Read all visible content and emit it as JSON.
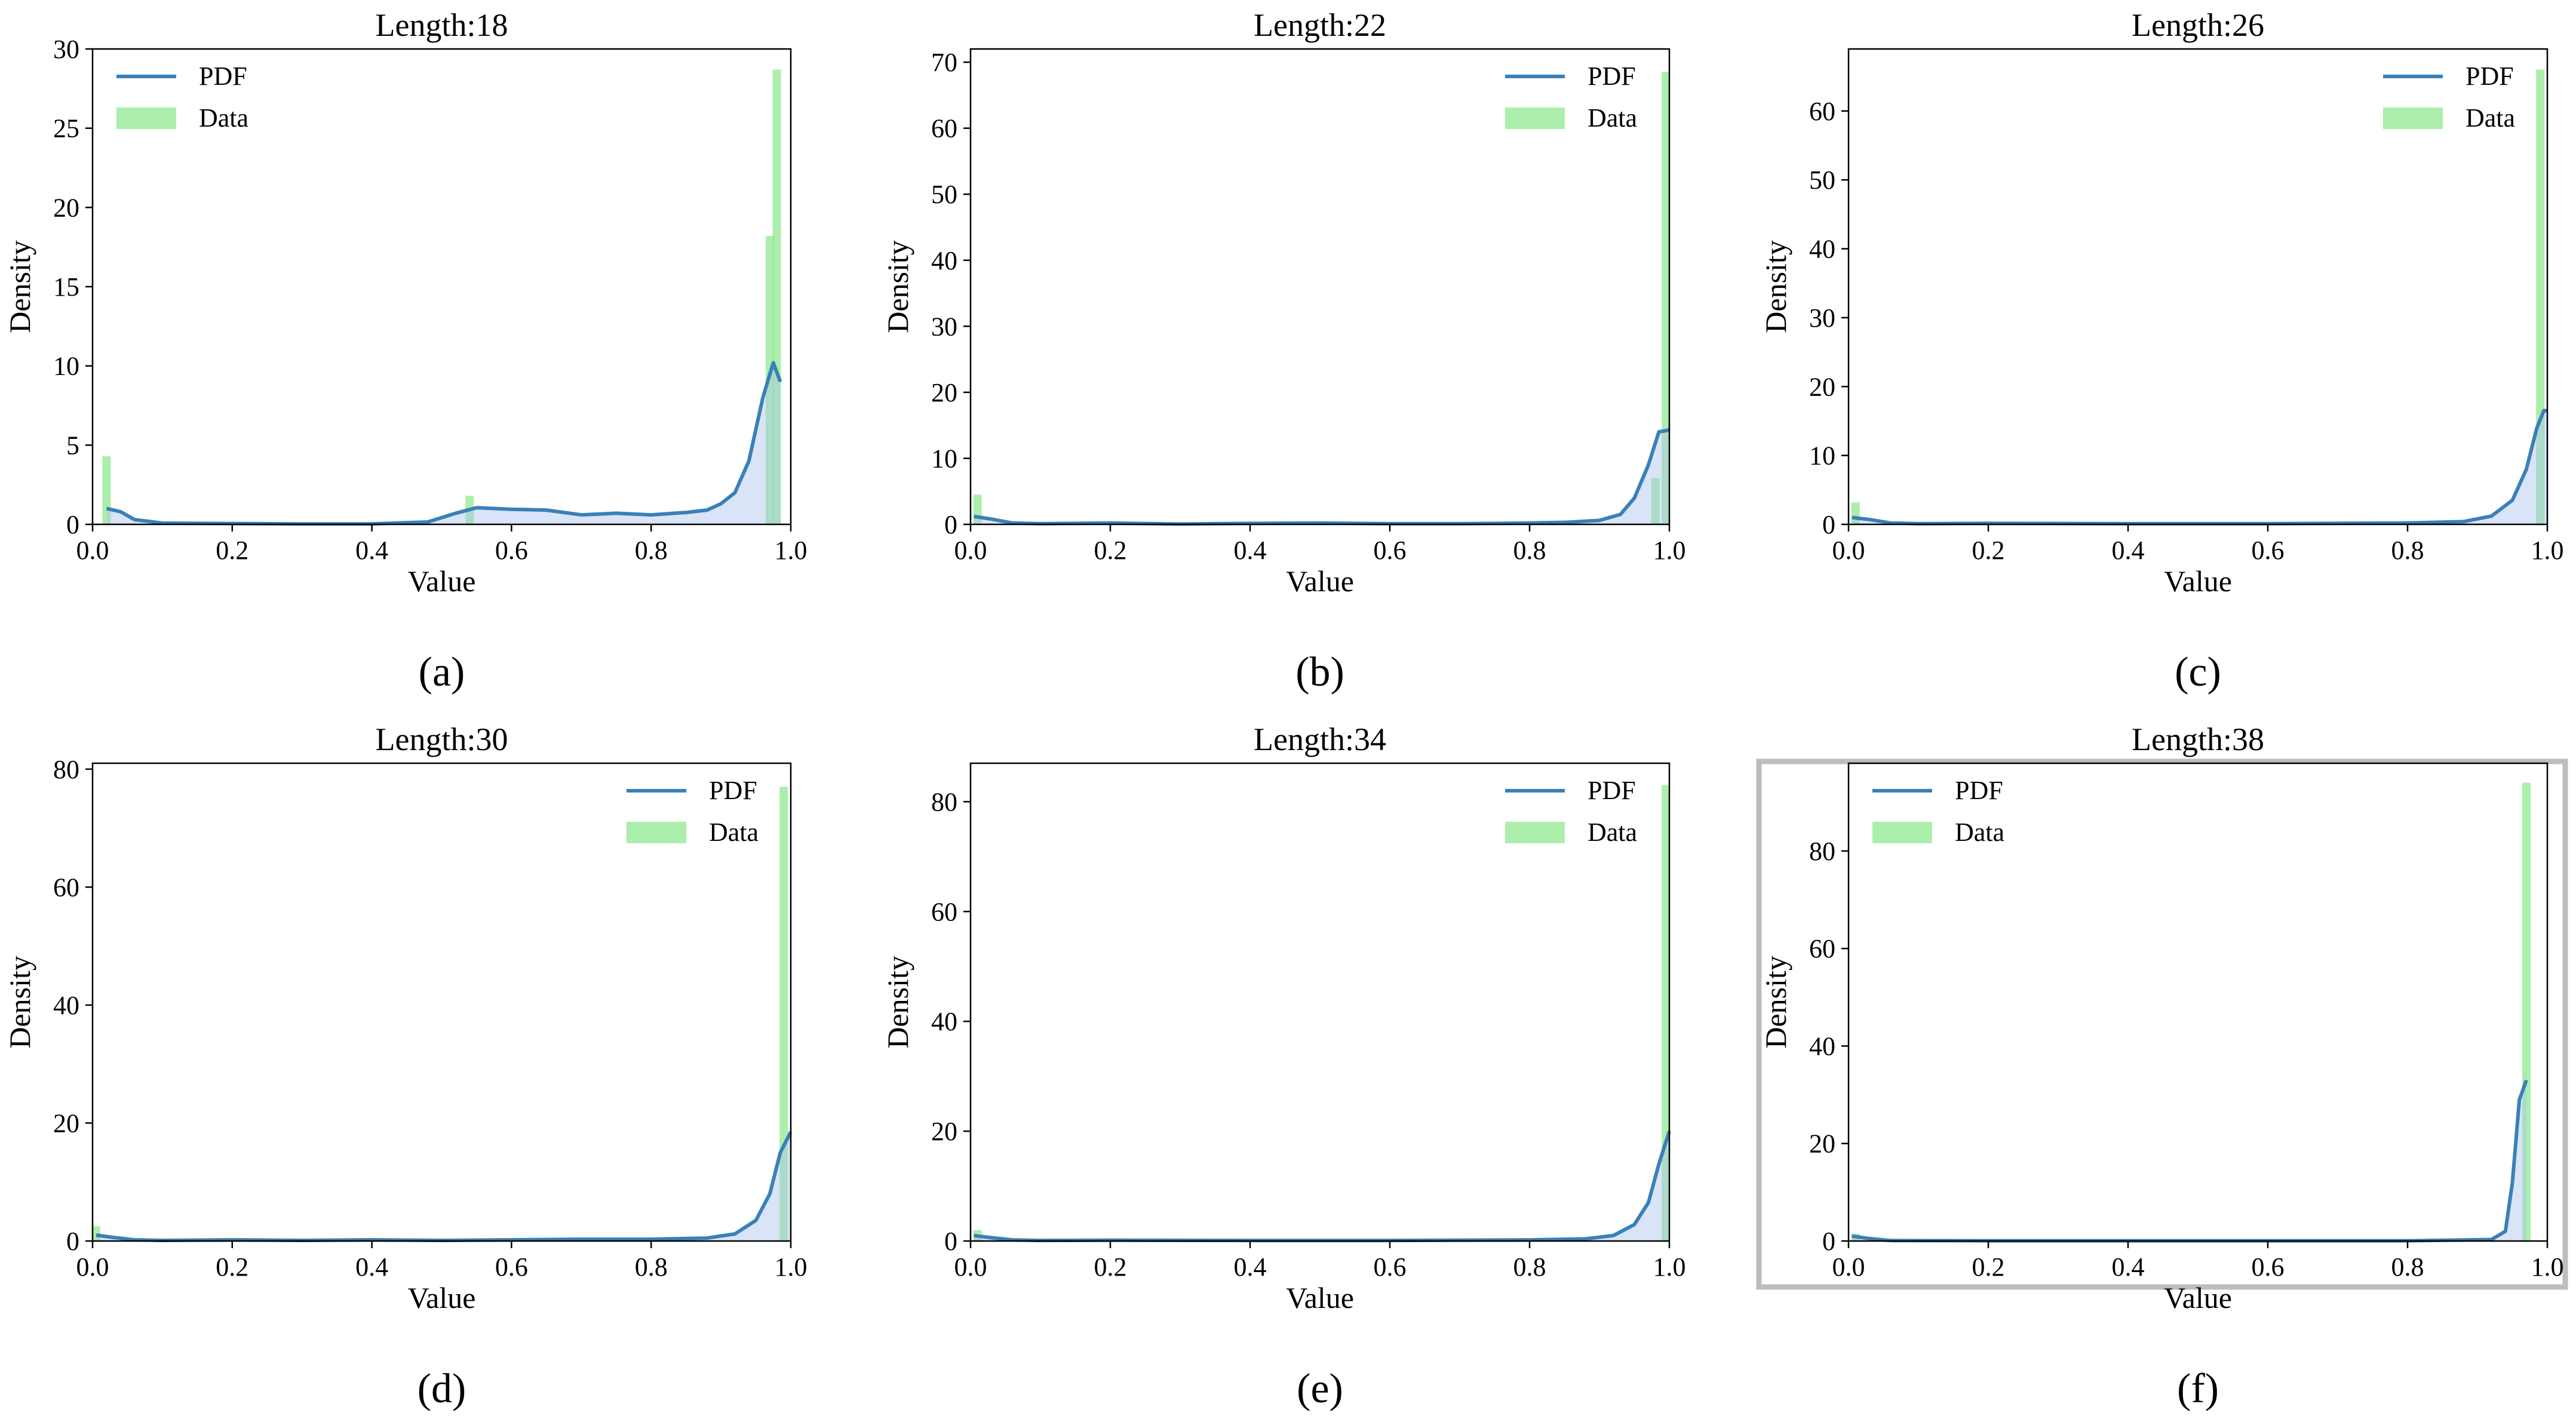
{
  "figure": {
    "xlabel": "Value",
    "ylabel": "Density",
    "legend": {
      "pdf_label": "PDF",
      "data_label": "Data"
    },
    "colors": {
      "pdf_line": "#3a80b8",
      "hist_fill": "#90e890",
      "pdf_fill": "#aac4ee",
      "axis": "#000000",
      "border_f": "#bdbdbd"
    }
  },
  "chart_data": [
    {
      "type": "histogram+line",
      "panel_label": "(a)",
      "title": "Length:18",
      "xlabel": "Value",
      "ylabel": "Density",
      "xlim": [
        0.0,
        1.0
      ],
      "ylim": [
        0,
        30
      ],
      "xticks": [
        0.0,
        0.2,
        0.4,
        0.6,
        0.8,
        1.0
      ],
      "yticks": [
        0,
        5,
        10,
        15,
        20,
        25,
        30
      ],
      "legend_position": "upper left",
      "histogram": [
        [
          0.02,
          4.3
        ],
        [
          0.54,
          1.8
        ],
        [
          0.97,
          18.2
        ],
        [
          0.98,
          28.7
        ]
      ],
      "pdf": [
        [
          0.02,
          1.0
        ],
        [
          0.04,
          0.8
        ],
        [
          0.06,
          0.3
        ],
        [
          0.1,
          0.08
        ],
        [
          0.2,
          0.05
        ],
        [
          0.3,
          0.03
        ],
        [
          0.4,
          0.03
        ],
        [
          0.48,
          0.15
        ],
        [
          0.52,
          0.7
        ],
        [
          0.55,
          1.05
        ],
        [
          0.6,
          0.95
        ],
        [
          0.65,
          0.9
        ],
        [
          0.7,
          0.6
        ],
        [
          0.75,
          0.7
        ],
        [
          0.8,
          0.6
        ],
        [
          0.85,
          0.75
        ],
        [
          0.88,
          0.9
        ],
        [
          0.9,
          1.3
        ],
        [
          0.92,
          2.0
        ],
        [
          0.94,
          4.0
        ],
        [
          0.96,
          8.0
        ],
        [
          0.975,
          10.2
        ],
        [
          0.985,
          9.0
        ]
      ]
    },
    {
      "type": "histogram+line",
      "panel_label": "(b)",
      "title": "Length:22",
      "xlabel": "Value",
      "ylabel": "Density",
      "xlim": [
        0.0,
        1.0
      ],
      "ylim": [
        0,
        72
      ],
      "xticks": [
        0.0,
        0.2,
        0.4,
        0.6,
        0.8,
        1.0
      ],
      "yticks": [
        0,
        10,
        20,
        30,
        40,
        50,
        60,
        70
      ],
      "legend_position": "upper right",
      "histogram": [
        [
          0.01,
          4.5
        ],
        [
          0.98,
          7.0
        ],
        [
          0.995,
          68.5
        ]
      ],
      "pdf": [
        [
          0.005,
          1.2
        ],
        [
          0.03,
          0.8
        ],
        [
          0.06,
          0.2
        ],
        [
          0.1,
          0.1
        ],
        [
          0.2,
          0.2
        ],
        [
          0.3,
          0.05
        ],
        [
          0.4,
          0.15
        ],
        [
          0.5,
          0.2
        ],
        [
          0.6,
          0.1
        ],
        [
          0.7,
          0.1
        ],
        [
          0.8,
          0.2
        ],
        [
          0.85,
          0.3
        ],
        [
          0.9,
          0.6
        ],
        [
          0.93,
          1.5
        ],
        [
          0.95,
          4.0
        ],
        [
          0.97,
          9.0
        ],
        [
          0.985,
          14.0
        ],
        [
          1.0,
          14.3
        ]
      ]
    },
    {
      "type": "histogram+line",
      "panel_label": "(c)",
      "title": "Length:26",
      "xlabel": "Value",
      "ylabel": "Density",
      "xlim": [
        0.0,
        1.0
      ],
      "ylim": [
        0,
        69
      ],
      "xticks": [
        0.0,
        0.2,
        0.4,
        0.6,
        0.8,
        1.0
      ],
      "yticks": [
        0,
        10,
        20,
        30,
        40,
        50,
        60
      ],
      "legend_position": "upper right",
      "histogram": [
        [
          0.01,
          3.2
        ],
        [
          0.99,
          66.0
        ]
      ],
      "pdf": [
        [
          0.005,
          1.0
        ],
        [
          0.03,
          0.7
        ],
        [
          0.06,
          0.2
        ],
        [
          0.1,
          0.1
        ],
        [
          0.2,
          0.15
        ],
        [
          0.4,
          0.1
        ],
        [
          0.6,
          0.1
        ],
        [
          0.8,
          0.2
        ],
        [
          0.88,
          0.4
        ],
        [
          0.92,
          1.2
        ],
        [
          0.95,
          3.5
        ],
        [
          0.97,
          8.0
        ],
        [
          0.985,
          14.0
        ],
        [
          0.995,
          16.5
        ],
        [
          1.0,
          16.5
        ]
      ]
    },
    {
      "type": "histogram+line",
      "panel_label": "(d)",
      "title": "Length:30",
      "xlabel": "Value",
      "ylabel": "Density",
      "xlim": [
        0.0,
        1.0
      ],
      "ylim": [
        0,
        81
      ],
      "xticks": [
        0.0,
        0.2,
        0.4,
        0.6,
        0.8,
        1.0
      ],
      "yticks": [
        0,
        20,
        40,
        60,
        80
      ],
      "legend_position": "upper right",
      "histogram": [
        [
          0.005,
          2.5
        ],
        [
          0.99,
          77.0
        ]
      ],
      "pdf": [
        [
          0.005,
          1.0
        ],
        [
          0.03,
          0.6
        ],
        [
          0.06,
          0.2
        ],
        [
          0.1,
          0.1
        ],
        [
          0.2,
          0.2
        ],
        [
          0.3,
          0.1
        ],
        [
          0.4,
          0.2
        ],
        [
          0.5,
          0.1
        ],
        [
          0.6,
          0.2
        ],
        [
          0.7,
          0.3
        ],
        [
          0.8,
          0.3
        ],
        [
          0.88,
          0.5
        ],
        [
          0.92,
          1.2
        ],
        [
          0.95,
          3.5
        ],
        [
          0.97,
          8.0
        ],
        [
          0.985,
          15.0
        ],
        [
          1.0,
          18.5
        ]
      ]
    },
    {
      "type": "histogram+line",
      "panel_label": "(e)",
      "title": "Length:34",
      "xlabel": "Value",
      "ylabel": "Density",
      "xlim": [
        0.0,
        1.0
      ],
      "ylim": [
        0,
        87
      ],
      "xticks": [
        0.0,
        0.2,
        0.4,
        0.6,
        0.8,
        1.0
      ],
      "yticks": [
        0,
        20,
        40,
        60,
        80
      ],
      "legend_position": "upper right",
      "histogram": [
        [
          0.01,
          2.0
        ],
        [
          0.995,
          83.0
        ]
      ],
      "pdf": [
        [
          0.005,
          1.0
        ],
        [
          0.03,
          0.6
        ],
        [
          0.06,
          0.2
        ],
        [
          0.1,
          0.1
        ],
        [
          0.2,
          0.15
        ],
        [
          0.4,
          0.1
        ],
        [
          0.6,
          0.1
        ],
        [
          0.8,
          0.2
        ],
        [
          0.88,
          0.4
        ],
        [
          0.92,
          1.0
        ],
        [
          0.95,
          3.0
        ],
        [
          0.97,
          7.0
        ],
        [
          0.985,
          14.0
        ],
        [
          1.0,
          20.0
        ]
      ]
    },
    {
      "type": "histogram+line",
      "panel_label": "(f)",
      "title": "Length:38",
      "xlabel": "Value",
      "ylabel": "Density",
      "xlim": [
        0.0,
        1.0
      ],
      "ylim": [
        0,
        98
      ],
      "xticks": [
        0.0,
        0.2,
        0.4,
        0.6,
        0.8,
        1.0
      ],
      "yticks": [
        0,
        20,
        40,
        60,
        80
      ],
      "legend_position": "upper left",
      "histogram": [
        [
          0.01,
          1.5
        ],
        [
          0.97,
          94.0
        ]
      ],
      "pdf": [
        [
          0.005,
          1.0
        ],
        [
          0.03,
          0.5
        ],
        [
          0.06,
          0.1
        ],
        [
          0.2,
          0.05
        ],
        [
          0.5,
          0.05
        ],
        [
          0.8,
          0.05
        ],
        [
          0.92,
          0.3
        ],
        [
          0.94,
          2.0
        ],
        [
          0.95,
          12.0
        ],
        [
          0.96,
          29.0
        ],
        [
          0.97,
          33.0
        ]
      ]
    }
  ]
}
